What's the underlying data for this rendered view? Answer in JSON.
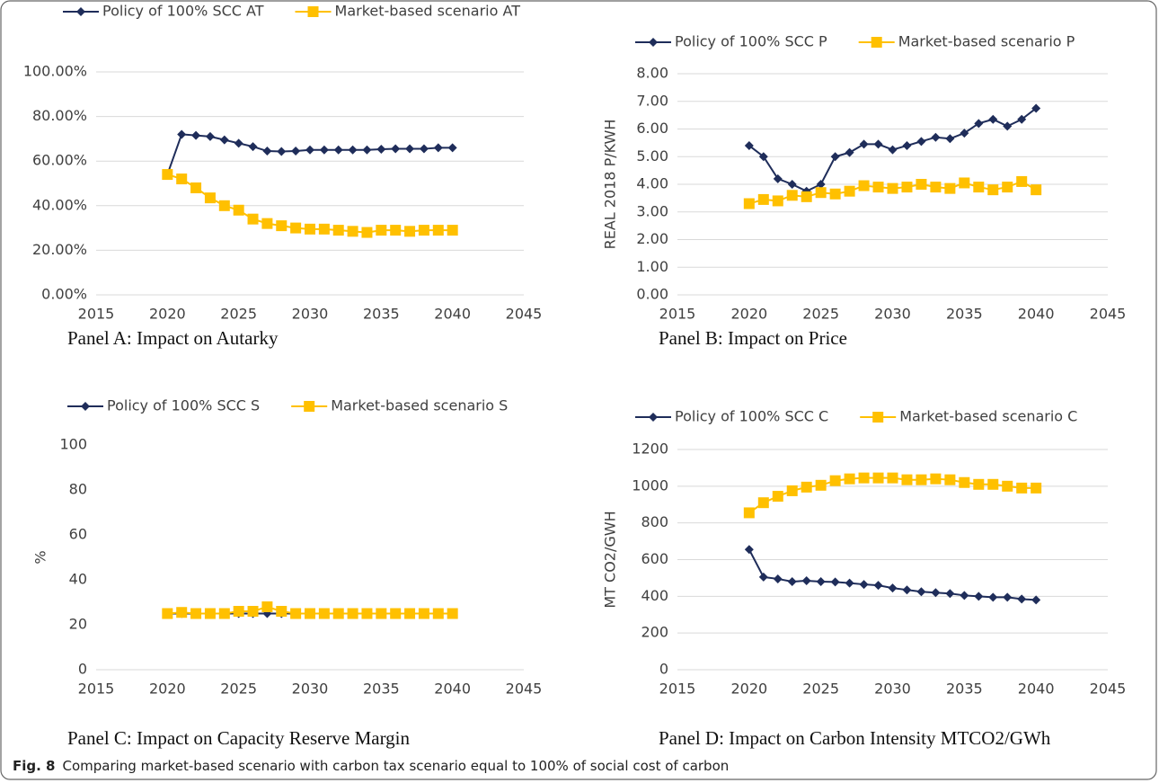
{
  "chart_data": [
    {
      "type": "line",
      "caption": "Panel A: Impact on Autarky",
      "x": [
        2020,
        2021,
        2022,
        2023,
        2024,
        2025,
        2026,
        2027,
        2028,
        2029,
        2030,
        2031,
        2032,
        2033,
        2034,
        2035,
        2036,
        2037,
        2038,
        2039,
        2040
      ],
      "series": [
        {
          "name": "Policy of 100% SCC AT",
          "color": "#1f2d5a",
          "marker": "diamond",
          "values": [
            54,
            72,
            71.5,
            71,
            69.5,
            68,
            66.5,
            64.5,
            64.3,
            64.5,
            65,
            65,
            65,
            65,
            65,
            65.3,
            65.5,
            65.5,
            65.5,
            66,
            66
          ]
        },
        {
          "name": "Market-based scenario AT",
          "color": "#ffc000",
          "marker": "square",
          "values": [
            54,
            52,
            48,
            43.5,
            40,
            38,
            34,
            32,
            31,
            30,
            29.5,
            29.5,
            29,
            28.5,
            28,
            29,
            29,
            28.5,
            29,
            29,
            29
          ]
        }
      ],
      "xlim": [
        2015,
        2045
      ],
      "xticks": [
        2015,
        2020,
        2025,
        2030,
        2035,
        2040,
        2045
      ],
      "ylim": [
        0,
        100
      ],
      "yticks": [
        {
          "value": 0,
          "label": "0.00%"
        },
        {
          "value": 20,
          "label": "20.00%"
        },
        {
          "value": 40,
          "label": "40.00%"
        },
        {
          "value": 60,
          "label": "60.00%"
        },
        {
          "value": 80,
          "label": "80.00%"
        },
        {
          "value": 100,
          "label": "100.00%"
        }
      ],
      "grid": true
    },
    {
      "type": "line",
      "caption": "Panel B: Impact on Price",
      "y_label": "REAL 2018 P/KWH",
      "x": [
        2020,
        2021,
        2022,
        2023,
        2024,
        2025,
        2026,
        2027,
        2028,
        2029,
        2030,
        2031,
        2032,
        2033,
        2034,
        2035,
        2036,
        2037,
        2038,
        2039,
        2040
      ],
      "series": [
        {
          "name": "Policy of 100% SCC P",
          "color": "#1f2d5a",
          "marker": "diamond",
          "values": [
            5.4,
            5.0,
            4.2,
            4.0,
            3.75,
            4.0,
            5.0,
            5.15,
            5.45,
            5.45,
            5.25,
            5.4,
            5.55,
            5.7,
            5.65,
            5.85,
            6.2,
            6.35,
            6.1,
            6.35,
            6.75
          ]
        },
        {
          "name": "Market-based scenario P",
          "color": "#ffc000",
          "marker": "square",
          "values": [
            3.3,
            3.45,
            3.4,
            3.6,
            3.55,
            3.7,
            3.65,
            3.75,
            3.95,
            3.9,
            3.85,
            3.9,
            4.0,
            3.9,
            3.85,
            4.05,
            3.9,
            3.8,
            3.9,
            4.1,
            3.8
          ]
        }
      ],
      "xlim": [
        2015,
        2045
      ],
      "xticks": [
        2015,
        2020,
        2025,
        2030,
        2035,
        2040,
        2045
      ],
      "ylim": [
        0,
        8
      ],
      "yticks": [
        {
          "value": 0,
          "label": "0.00"
        },
        {
          "value": 1,
          "label": "1.00"
        },
        {
          "value": 2,
          "label": "2.00"
        },
        {
          "value": 3,
          "label": "3.00"
        },
        {
          "value": 4,
          "label": "4.00"
        },
        {
          "value": 5,
          "label": "5.00"
        },
        {
          "value": 6,
          "label": "6.00"
        },
        {
          "value": 7,
          "label": "7.00"
        },
        {
          "value": 8,
          "label": "8.00"
        }
      ],
      "grid": true
    },
    {
      "type": "line",
      "caption": "Panel C: Impact on Capacity Reserve Margin",
      "y_label": "%",
      "x": [
        2020,
        2021,
        2022,
        2023,
        2024,
        2025,
        2026,
        2027,
        2028,
        2029,
        2030,
        2031,
        2032,
        2033,
        2034,
        2035,
        2036,
        2037,
        2038,
        2039,
        2040
      ],
      "series": [
        {
          "name": "Policy of 100% SCC S",
          "color": "#1f2d5a",
          "marker": "diamond",
          "values": [
            25,
            25,
            25,
            25,
            25,
            25,
            25,
            25,
            25,
            25,
            25,
            25,
            25,
            25,
            25,
            25,
            25,
            25,
            25,
            25,
            25
          ]
        },
        {
          "name": "Market-based scenario S",
          "color": "#ffc000",
          "marker": "square",
          "values": [
            25,
            25.5,
            25,
            25,
            25,
            26,
            26,
            28,
            26,
            25,
            25,
            25,
            25,
            25,
            25,
            25,
            25,
            25,
            25,
            25,
            25
          ]
        }
      ],
      "xlim": [
        2015,
        2045
      ],
      "xticks": [
        2015,
        2020,
        2025,
        2030,
        2035,
        2040,
        2045
      ],
      "ylim": [
        0,
        100
      ],
      "yticks": [
        0,
        20,
        40,
        60,
        80,
        100
      ],
      "grid": false
    },
    {
      "type": "line",
      "caption": "Panel D: Impact on Carbon Intensity MTCO2/GWh",
      "y_label": "MT CO2/GWH",
      "x": [
        2020,
        2021,
        2022,
        2023,
        2024,
        2025,
        2026,
        2027,
        2028,
        2029,
        2030,
        2031,
        2032,
        2033,
        2034,
        2035,
        2036,
        2037,
        2038,
        2039,
        2040
      ],
      "series": [
        {
          "name": "Policy of 100% SCC C",
          "color": "#1f2d5a",
          "marker": "diamond",
          "values": [
            655,
            505,
            495,
            480,
            485,
            480,
            478,
            472,
            465,
            460,
            445,
            435,
            425,
            420,
            415,
            405,
            400,
            395,
            395,
            385,
            380
          ]
        },
        {
          "name": "Market-based scenario C",
          "color": "#ffc000",
          "marker": "square",
          "values": [
            855,
            910,
            945,
            975,
            995,
            1005,
            1030,
            1040,
            1045,
            1045,
            1045,
            1035,
            1035,
            1040,
            1035,
            1020,
            1010,
            1010,
            1000,
            990,
            990
          ]
        }
      ],
      "xlim": [
        2015,
        2045
      ],
      "xticks": [
        2015,
        2020,
        2025,
        2030,
        2035,
        2040,
        2045
      ],
      "ylim": [
        0,
        1200
      ],
      "yticks": [
        0,
        200,
        400,
        600,
        800,
        1000,
        1200
      ],
      "grid": true
    }
  ],
  "figure_caption": {
    "label": "Fig. 8",
    "text": "Comparing market-based scenario with carbon tax scenario equal to 100% of social cost of carbon"
  }
}
